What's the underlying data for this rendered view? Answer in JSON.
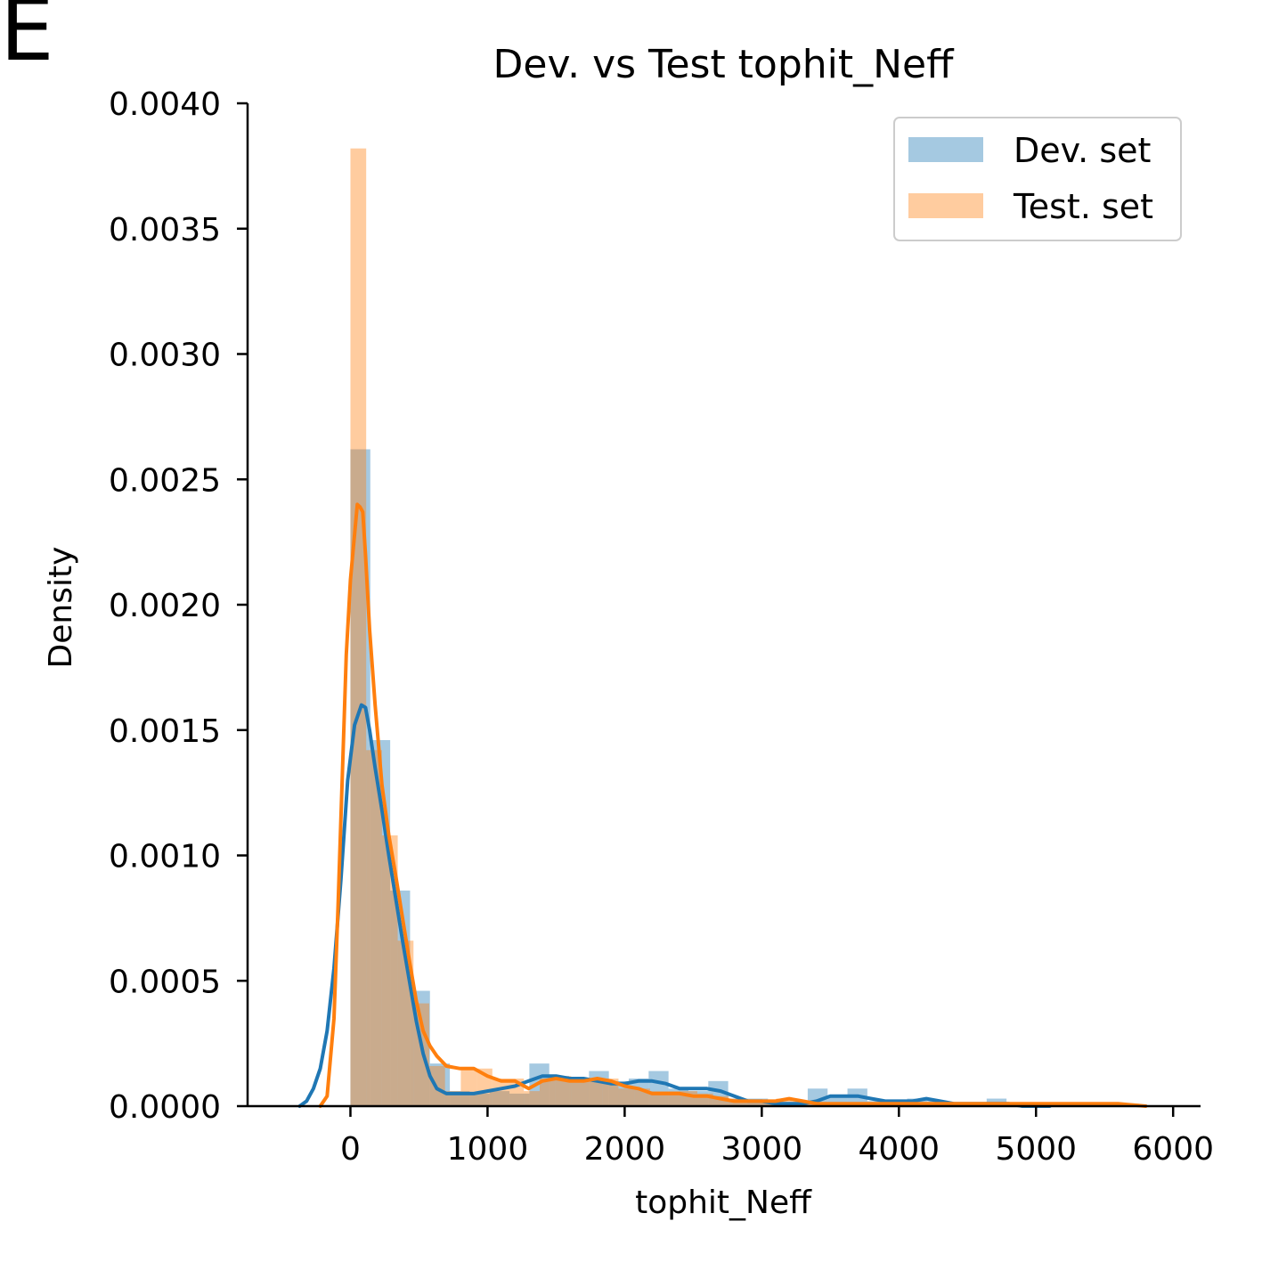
{
  "panel_letter": "E",
  "chart_data": {
    "type": "histogram",
    "title": "Dev. vs Test tophit_Neff",
    "xlabel": "tophit_Neff",
    "ylabel": "Density",
    "xlim": [
      -750,
      6200
    ],
    "ylim": [
      0,
      0.004
    ],
    "xticks": [
      0,
      1000,
      2000,
      3000,
      4000,
      5000,
      6000
    ],
    "yticks": [
      0.0,
      0.0005,
      0.001,
      0.0015,
      0.002,
      0.0025,
      0.003,
      0.0035,
      0.004
    ],
    "xtick_labels": [
      "0",
      "1000",
      "2000",
      "3000",
      "4000",
      "5000",
      "6000"
    ],
    "ytick_labels": [
      "0.0000",
      "0.0005",
      "0.0010",
      "0.0015",
      "0.0020",
      "0.0025",
      "0.0030",
      "0.0035",
      "0.0040"
    ],
    "legend_position": "top-right",
    "legend": [
      "Dev. set",
      "Test. set"
    ],
    "grid": false,
    "series": [
      {
        "name": "Dev. set",
        "color": "#1f77b4",
        "bin_edges": [
          0,
          145,
          290,
          435,
          580,
          725,
          870,
          1015,
          1160,
          1305,
          1450,
          1595,
          1740,
          1885,
          2030,
          2175,
          2320,
          2465,
          2610,
          2755,
          2900,
          3045,
          3190,
          3335,
          3480,
          3625,
          3770,
          3915,
          4060,
          4205,
          4350,
          4495,
          4640,
          4785,
          4930,
          5075,
          5220
        ],
        "densities": [
          0.00262,
          0.00146,
          0.00086,
          0.00046,
          0.00017,
          6e-05,
          5e-05,
          6e-05,
          5e-05,
          0.00017,
          0.00012,
          0.00011,
          0.00014,
          0.0001,
          0.00011,
          0.00014,
          7e-05,
          6e-05,
          0.0001,
          3e-05,
          3e-05,
          1e-05,
          1e-05,
          7e-05,
          4e-05,
          7e-05,
          2e-05,
          2e-05,
          3e-05,
          2e-05,
          1e-05,
          1e-05,
          3e-05,
          1e-05,
          1e-05,
          1e-05
        ],
        "kde_x": [
          -370,
          -320,
          -270,
          -220,
          -170,
          -120,
          -70,
          -20,
          30,
          80,
          110,
          140,
          180,
          230,
          280,
          330,
          380,
          430,
          480,
          530,
          580,
          630,
          700,
          800,
          900,
          1000,
          1100,
          1200,
          1300,
          1400,
          1500,
          1600,
          1700,
          1800,
          1900,
          2000,
          2100,
          2200,
          2300,
          2400,
          2500,
          2600,
          2700,
          2800,
          2900,
          3000,
          3100,
          3200,
          3300,
          3400,
          3500,
          3600,
          3700,
          3800,
          3900,
          4000,
          4100,
          4200,
          4300,
          4400,
          4500,
          4600,
          4700,
          4800,
          4900,
          5000,
          5100
        ],
        "kde_y": [
          0.0,
          2e-05,
          7e-05,
          0.00015,
          0.0003,
          0.00055,
          0.0009,
          0.0013,
          0.00152,
          0.0016,
          0.00159,
          0.0015,
          0.00135,
          0.00118,
          0.001,
          0.00083,
          0.00066,
          0.0005,
          0.00034,
          0.00021,
          0.00012,
          7e-05,
          5e-05,
          5e-05,
          5e-05,
          6e-05,
          7e-05,
          8e-05,
          0.0001,
          0.00012,
          0.00012,
          0.00011,
          0.00011,
          0.0001,
          9e-05,
          9e-05,
          0.0001,
          0.0001,
          9e-05,
          7e-05,
          7e-05,
          7e-05,
          6e-05,
          4e-05,
          2e-05,
          2e-05,
          1e-05,
          1e-05,
          1e-05,
          2e-05,
          4e-05,
          4e-05,
          4e-05,
          3e-05,
          2e-05,
          2e-05,
          2e-05,
          3e-05,
          2e-05,
          1e-05,
          1e-05,
          1e-05,
          1e-05,
          1e-05,
          0.0,
          0.0,
          0.0
        ]
      },
      {
        "name": "Test. set",
        "color": "#ff7f0e",
        "bin_edges": [
          0,
          115,
          230,
          345,
          460,
          575,
          690,
          805,
          920,
          1035,
          1150,
          1265,
          1380,
          1495,
          1610,
          1725,
          1840,
          1955,
          2070,
          2185,
          2300,
          2415,
          2530,
          2645,
          2760,
          2875,
          2990,
          3105,
          3220,
          3335,
          3450,
          3565,
          3680,
          3795,
          3910,
          4025,
          4140,
          4255,
          4370,
          4485,
          4600,
          4715,
          4830,
          4945,
          5060,
          5175,
          5290,
          5405,
          5520,
          5635,
          5750
        ],
        "densities": [
          0.00382,
          0.00142,
          0.00108,
          0.00066,
          0.00041,
          0.00016,
          6e-05,
          0.00015,
          0.00015,
          0.00011,
          0.00011,
          6e-05,
          0.00011,
          0.00012,
          0.00011,
          0.00011,
          0.00011,
          7e-05,
          7e-05,
          6e-05,
          6e-05,
          6e-05,
          5e-05,
          4e-05,
          3e-05,
          2e-05,
          2e-05,
          3e-05,
          2e-05,
          1e-05,
          1e-05,
          1e-05,
          1e-05,
          1e-05,
          1e-05,
          1e-05,
          1e-05,
          0.0,
          0.0,
          0.0,
          0.0,
          0.0,
          0.0,
          0.0,
          0.0,
          0.0,
          0.0,
          0.0,
          0.0,
          1e-05
        ],
        "kde_x": [
          -220,
          -170,
          -120,
          -90,
          -60,
          -30,
          0,
          30,
          50,
          70,
          90,
          110,
          140,
          180,
          230,
          280,
          330,
          380,
          430,
          480,
          530,
          580,
          630,
          700,
          800,
          900,
          1000,
          1100,
          1200,
          1300,
          1400,
          1500,
          1600,
          1700,
          1800,
          1900,
          2000,
          2100,
          2200,
          2300,
          2400,
          2500,
          2600,
          2700,
          2800,
          2900,
          3000,
          3100,
          3200,
          3300,
          3400,
          3500,
          3600,
          3700,
          3800,
          4000,
          4200,
          4400,
          4600,
          4800,
          5000,
          5200,
          5400,
          5600,
          5800
        ],
        "kde_y": [
          0.0,
          4e-05,
          0.00035,
          0.0008,
          0.0013,
          0.0018,
          0.0021,
          0.00228,
          0.0024,
          0.00239,
          0.00237,
          0.0022,
          0.0019,
          0.0016,
          0.00128,
          0.00108,
          0.00092,
          0.00075,
          0.00058,
          0.00042,
          0.0003,
          0.00024,
          0.0002,
          0.00016,
          0.00015,
          0.00015,
          0.00012,
          0.0001,
          0.0001,
          7e-05,
          0.0001,
          0.00011,
          0.0001,
          0.0001,
          0.00011,
          0.0001,
          8e-05,
          7e-05,
          5e-05,
          5e-05,
          5e-05,
          4e-05,
          4e-05,
          3e-05,
          2e-05,
          2e-05,
          2e-05,
          2e-05,
          3e-05,
          2e-05,
          1e-05,
          1e-05,
          1e-05,
          1e-05,
          1e-05,
          1e-05,
          1e-05,
          1e-05,
          1e-05,
          1e-05,
          1e-05,
          1e-05,
          1e-05,
          1e-05,
          0.0
        ]
      }
    ]
  }
}
